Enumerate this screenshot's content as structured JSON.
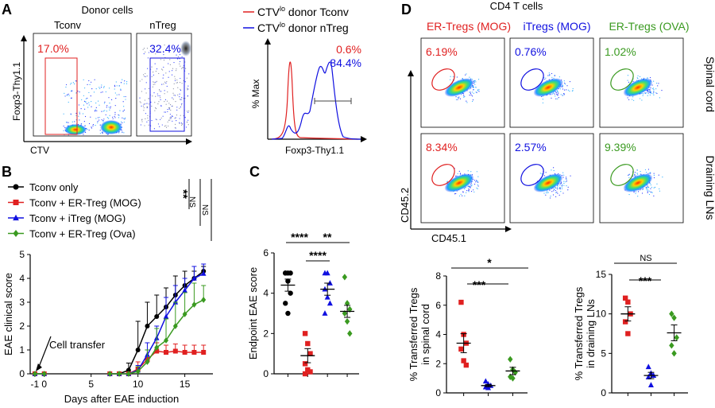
{
  "colors": {
    "red": "#e02020",
    "blue": "#1010e0",
    "green": "#3a9a20",
    "black": "#000000"
  },
  "panel_letters": [
    "A",
    "B",
    "C",
    "D"
  ],
  "panelA": {
    "title": "Donor cells",
    "plots": [
      {
        "label": "Tconv",
        "pct": "17.0%",
        "color": "red"
      },
      {
        "label": "nTreg",
        "pct": "32.4%",
        "color": "blue"
      }
    ],
    "ylabel": "Foxp3-Thy1.1",
    "xlabel": "CTV",
    "hist_ylabel": "% Max",
    "hist_xlabel": "Foxp3-Thy1.1",
    "legend": [
      {
        "label": "CTV",
        "sup": "lo",
        "tail": " donor Tconv",
        "color": "red"
      },
      {
        "label": "CTV",
        "sup": "lo",
        "tail": " donor nTreg",
        "color": "blue"
      }
    ],
    "hist_pcts": [
      {
        "value": "0.6%",
        "color": "red"
      },
      {
        "value": "84.4%",
        "color": "blue"
      }
    ]
  },
  "panelB": {
    "legend": [
      {
        "label": "Tconv only",
        "color": "black",
        "marker": "circle"
      },
      {
        "label": "Tconv + ER-Treg (MOG)",
        "color": "red",
        "marker": "square"
      },
      {
        "label": "Tconv + iTreg (MOG)",
        "color": "blue",
        "marker": "triangle"
      },
      {
        "label": "Tconv + ER-Treg (Ova)",
        "color": "green",
        "marker": "diamond"
      }
    ],
    "sig": [
      "**",
      "NS",
      "NS"
    ],
    "annotation": "Cell transfer",
    "ylabel": "EAE clinical score",
    "xlabel": "Days after EAE induction"
  },
  "panelC": {
    "ylabel": "Endpoint EAE score",
    "sig": [
      "****",
      "**",
      "****"
    ]
  },
  "panelD": {
    "title": "CD4 T cells",
    "columns": [
      {
        "label": "ER-Tregs (MOG)",
        "color": "red"
      },
      {
        "label": "iTregs (MOG)",
        "color": "blue"
      },
      {
        "label": "ER-Tregs (OVA)",
        "color": "green"
      }
    ],
    "rows": [
      "Spinal cord",
      "Draining LNs"
    ],
    "pcts": [
      [
        "6.19%",
        "0.76%",
        "1.02%"
      ],
      [
        "8.34%",
        "2.57%",
        "9.39%"
      ]
    ],
    "ylabel": "CD45.2",
    "xlabel": "CD45.1",
    "bottom_left": {
      "ylabel_line1": "% Transferred Tregs",
      "ylabel_line2": "in spinal cord",
      "sig": [
        "***",
        "*"
      ]
    },
    "bottom_right": {
      "ylabel_line1": "% Transferred Tregs",
      "ylabel_line2": "in draining LNs",
      "sig": [
        "NS",
        "***"
      ]
    }
  },
  "chart_data": [
    {
      "type": "line",
      "panel": "B",
      "x": [
        -1,
        0,
        7,
        8,
        9,
        10,
        11,
        12,
        13,
        14,
        15,
        16,
        17
      ],
      "series": [
        {
          "name": "Tconv only",
          "values": [
            0,
            0,
            0,
            0,
            0.15,
            1.0,
            2.0,
            2.4,
            2.8,
            3.3,
            3.7,
            4.0,
            4.3
          ],
          "error": [
            0,
            0,
            0,
            0,
            0.3,
            1.2,
            1.0,
            0.9,
            0.8,
            0.8,
            0.6,
            0.3,
            0.2
          ]
        },
        {
          "name": "Tconv + ER-Treg (MOG)",
          "values": [
            0,
            0,
            0,
            0,
            0,
            0.2,
            0.6,
            0.95,
            0.9,
            0.95,
            0.9,
            0.9,
            0.9
          ],
          "error": [
            0,
            0,
            0,
            0,
            0,
            0.3,
            0.4,
            0.35,
            0.3,
            0.3,
            0.3,
            0.3,
            0.3
          ]
        },
        {
          "name": "Tconv + iTreg (MOG)",
          "values": [
            0,
            0,
            0,
            0,
            0,
            0.15,
            0.8,
            1.5,
            2.4,
            3.0,
            3.5,
            4.0,
            4.2
          ],
          "error": [
            0,
            0,
            0,
            0,
            0,
            0.2,
            0.5,
            0.5,
            0.8,
            0.7,
            0.5,
            0.5,
            0.4
          ]
        },
        {
          "name": "Tconv + ER-Treg (Ova)",
          "values": [
            0,
            0,
            0,
            0,
            0,
            0.1,
            0.5,
            1.1,
            1.4,
            2.0,
            2.5,
            2.9,
            3.1
          ],
          "error": [
            0,
            0,
            0,
            0,
            0,
            0.2,
            0.5,
            0.8,
            0.9,
            1.0,
            0.9,
            0.9,
            0.6
          ]
        }
      ],
      "ylabel": "EAE clinical score",
      "xlabel": "Days after EAE induction",
      "xticks": [
        -1,
        0,
        5,
        10,
        15
      ],
      "yticks": [
        0,
        1,
        2,
        3,
        4,
        5
      ],
      "ylim": [
        0,
        5
      ],
      "xlim": [
        -1.5,
        18
      ]
    },
    {
      "type": "scatter",
      "panel": "C",
      "groups": [
        {
          "color": "black",
          "marker": "circle",
          "points": [
            5,
            5,
            5,
            5,
            4.6,
            4,
            3.5,
            3
          ],
          "mean": 4.4,
          "sem": 0.3
        },
        {
          "color": "red",
          "marker": "square",
          "points": [
            2,
            1.5,
            1,
            0.5,
            0.2,
            0.1,
            0
          ],
          "mean": 0.9,
          "sem": 0.35
        },
        {
          "color": "blue",
          "marker": "triangle",
          "points": [
            5,
            5,
            4.5,
            4.2,
            3.8,
            3.5,
            3
          ],
          "mean": 4.2,
          "sem": 0.3
        },
        {
          "color": "green",
          "marker": "diamond",
          "points": [
            4.8,
            3.5,
            3.2,
            3,
            2.6,
            2
          ],
          "mean": 3.1,
          "sem": 0.3
        }
      ],
      "ylabel": "Endpoint EAE score",
      "yticks": [
        0,
        2,
        4,
        6
      ],
      "ylim": [
        0,
        6
      ]
    },
    {
      "type": "scatter",
      "panel": "D-spinal-cord",
      "groups": [
        {
          "color": "red",
          "marker": "square",
          "points": [
            6.2,
            4.0,
            3.4,
            3.0,
            2.2,
            1.9
          ],
          "mean": 3.4,
          "sem": 0.65
        },
        {
          "color": "blue",
          "marker": "triangle",
          "points": [
            0.8,
            0.6,
            0.5,
            0.4,
            0.35
          ],
          "mean": 0.5,
          "sem": 0.08
        },
        {
          "color": "green",
          "marker": "diamond",
          "points": [
            2.3,
            1.6,
            1.4,
            1.1,
            1.0
          ],
          "mean": 1.5,
          "sem": 0.25
        }
      ],
      "ylabel": "% Transferred Tregs in spinal cord",
      "yticks": [
        0,
        2,
        4,
        6,
        8
      ],
      "ylim": [
        0,
        8
      ]
    },
    {
      "type": "scatter",
      "panel": "D-draining-LNs",
      "groups": [
        {
          "color": "red",
          "marker": "square",
          "points": [
            12,
            11.5,
            10,
            9,
            7.5
          ],
          "mean": 10,
          "sem": 0.9
        },
        {
          "color": "blue",
          "marker": "triangle",
          "points": [
            3.3,
            2.5,
            2.2,
            2.0,
            1.0
          ],
          "mean": 2.2,
          "sem": 0.4
        },
        {
          "color": "green",
          "marker": "diamond",
          "points": [
            10,
            9.5,
            7,
            6,
            5
          ],
          "mean": 7.6,
          "sem": 1.0
        }
      ],
      "ylabel": "% Transferred Tregs in draining LNs",
      "yticks": [
        0,
        5,
        10,
        15
      ],
      "ylim": [
        0,
        15
      ]
    }
  ]
}
